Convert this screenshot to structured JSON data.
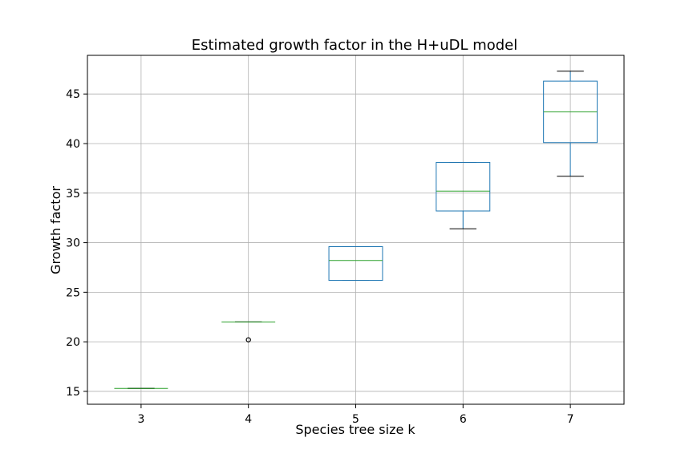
{
  "chart_data": {
    "type": "box",
    "title": "Estimated growth factor in the H+uDL model",
    "xlabel": "Species tree size k",
    "ylabel": "Growth factor",
    "categories": [
      "3",
      "4",
      "5",
      "6",
      "7"
    ],
    "ylim": [
      13.7,
      48.9
    ],
    "yticks": [
      15,
      20,
      25,
      30,
      35,
      40,
      45
    ],
    "grid": true,
    "boxes": [
      {
        "category": "3",
        "whislo": 15.3,
        "q1": 15.3,
        "med": 15.3,
        "q3": 15.3,
        "whishi": 15.3,
        "fliers": []
      },
      {
        "category": "4",
        "whislo": 22.0,
        "q1": 22.0,
        "med": 22.0,
        "q3": 22.0,
        "whishi": 22.0,
        "fliers": [
          20.2
        ]
      },
      {
        "category": "5",
        "whislo": 26.2,
        "q1": 26.2,
        "med": 28.2,
        "q3": 29.6,
        "whishi": 29.6,
        "fliers": []
      },
      {
        "category": "6",
        "whislo": 31.4,
        "q1": 33.2,
        "med": 35.2,
        "q3": 38.1,
        "whishi": 38.1,
        "fliers": []
      },
      {
        "category": "7",
        "whislo": 36.7,
        "q1": 40.1,
        "med": 43.2,
        "q3": 46.3,
        "whishi": 47.3,
        "fliers": []
      }
    ],
    "colors": {
      "box": "#1f77b4",
      "median": "#2ca02c",
      "whisker_cap": "#000000",
      "grid": "#b0b0b0",
      "flier": "#000000"
    }
  }
}
